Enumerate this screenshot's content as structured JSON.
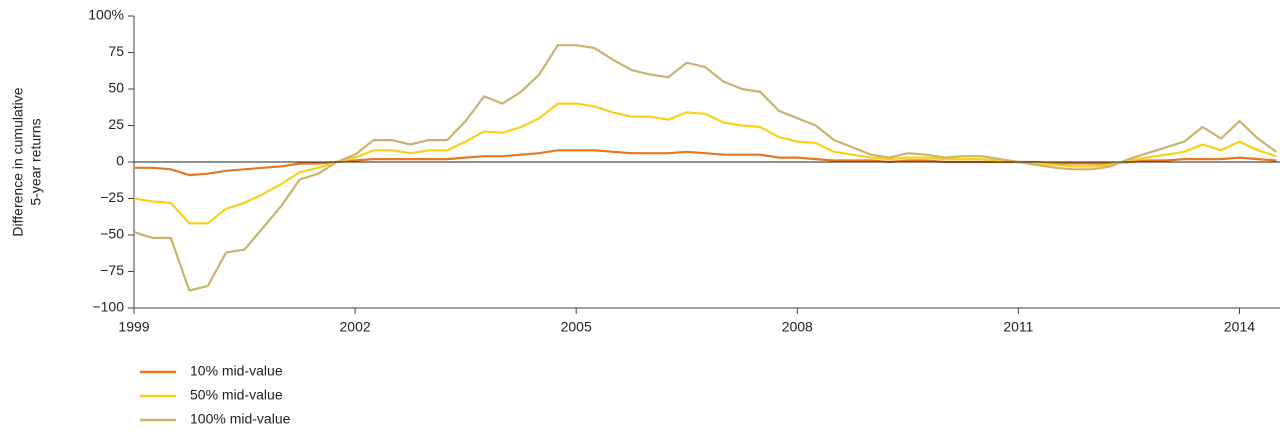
{
  "chart_data": {
    "type": "line",
    "y_label": [
      "Difference in cumulative",
      "5-year returns"
    ],
    "x": [
      1999,
      1999.25,
      1999.5,
      1999.75,
      2000,
      2000.25,
      2000.5,
      2000.75,
      2001,
      2001.25,
      2001.5,
      2001.75,
      2002,
      2002.25,
      2002.5,
      2002.75,
      2003,
      2003.25,
      2003.5,
      2003.75,
      2004,
      2004.25,
      2004.5,
      2004.75,
      2005,
      2005.25,
      2005.5,
      2005.75,
      2006,
      2006.25,
      2006.5,
      2006.75,
      2007,
      2007.25,
      2007.5,
      2007.75,
      2008,
      2008.25,
      2008.5,
      2008.75,
      2009,
      2009.25,
      2009.5,
      2009.75,
      2010,
      2010.25,
      2010.5,
      2010.75,
      2011,
      2011.25,
      2011.5,
      2011.75,
      2012,
      2012.25,
      2012.5,
      2012.75,
      2013,
      2013.25,
      2013.5,
      2013.75,
      2014,
      2014.25,
      2014.5
    ],
    "series": [
      {
        "name": "10% mid-value",
        "color": "#e87722",
        "values": [
          -4,
          -4,
          -5,
          -9,
          -8,
          -6,
          -5,
          -4,
          -3,
          -1,
          -1,
          0,
          1,
          2,
          2,
          2,
          2,
          2,
          3,
          4,
          4,
          5,
          6,
          8,
          8,
          8,
          7,
          6,
          6,
          6,
          7,
          6,
          5,
          5,
          5,
          3,
          3,
          2,
          1,
          1,
          1,
          0,
          1,
          1,
          0,
          0,
          0,
          0,
          0,
          0,
          -1,
          -1,
          -1,
          -1,
          0,
          1,
          1,
          2,
          2,
          2,
          3,
          2,
          1
        ]
      },
      {
        "name": "50% mid-value",
        "color": "#f7d117",
        "values": [
          -25,
          -27,
          -28,
          -42,
          -42,
          -32,
          -28,
          -22,
          -15,
          -7,
          -4,
          0,
          3,
          8,
          8,
          6,
          8,
          8,
          14,
          21,
          20,
          24,
          30,
          40,
          40,
          38,
          34,
          31,
          31,
          29,
          34,
          33,
          27,
          25,
          24,
          17,
          14,
          13,
          7,
          5,
          3,
          2,
          3,
          3,
          2,
          2,
          2,
          1,
          0,
          -1,
          -2,
          -3,
          -3,
          -2,
          1,
          3,
          5,
          7,
          12,
          8,
          14,
          8,
          4
        ]
      },
      {
        "name": "100% mid-value",
        "color": "#c8b46e",
        "values": [
          -48,
          -52,
          -52,
          -88,
          -85,
          -62,
          -60,
          -45,
          -30,
          -12,
          -8,
          0,
          5,
          15,
          15,
          12,
          15,
          15,
          28,
          45,
          40,
          48,
          60,
          80,
          80,
          78,
          70,
          63,
          60,
          58,
          68,
          65,
          55,
          50,
          48,
          35,
          30,
          25,
          15,
          10,
          5,
          3,
          6,
          5,
          3,
          4,
          4,
          2,
          0,
          -2,
          -4,
          -5,
          -5,
          -3,
          2,
          6,
          10,
          14,
          24,
          16,
          28,
          16,
          7
        ]
      }
    ],
    "xlim": [
      1999,
      2014.55
    ],
    "xticks": [
      1999,
      2002,
      2005,
      2008,
      2011,
      2014
    ],
    "ylim": [
      -100,
      100
    ],
    "yticks": [
      {
        "value": 100,
        "label": "100%"
      },
      75,
      50,
      25,
      0,
      {
        "value": -25,
        "label": "−25"
      },
      {
        "value": -50,
        "label": "−50"
      },
      {
        "value": -75,
        "label": "−75"
      },
      {
        "value": -100,
        "label": "−100"
      }
    ]
  }
}
